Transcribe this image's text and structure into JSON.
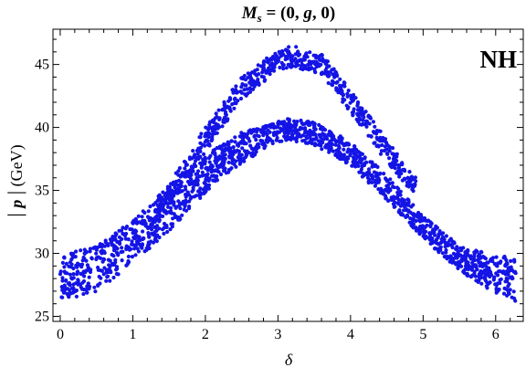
{
  "chart_data": {
    "type": "scatter",
    "title": "Ms = (0, g, 0)",
    "title_parts": {
      "symbol": "M",
      "subscript": "s",
      "rest": " = (0, ",
      "g": "g",
      "end": ", 0)"
    },
    "annotation": "NH",
    "xlabel": "δ",
    "ylabel": "| p | (GeV)",
    "ylabel_parts": {
      "bars_open": "| ",
      "p": "p",
      "bars_close": " |",
      "unit": " (GeV)"
    },
    "xlim": [
      -0.1,
      6.38
    ],
    "ylim": [
      24.6,
      47.8
    ],
    "x_ticks": [
      0,
      1,
      2,
      3,
      4,
      5,
      6
    ],
    "x_tick_labels": [
      "0",
      "1",
      "2",
      "3",
      "4",
      "5",
      "6"
    ],
    "y_ticks": [
      25,
      30,
      35,
      40,
      45
    ],
    "y_tick_labels": [
      "25",
      "30",
      "35",
      "40",
      "45"
    ],
    "grid": false,
    "point_color": "#1414e6",
    "series": [
      {
        "band": "lower",
        "x_range": [
          0,
          6.283
        ],
        "curve": {
          "x": [
            0,
            0.5,
            1.0,
            1.5,
            2.0,
            2.5,
            3.0,
            3.14,
            3.5,
            4.0,
            4.5,
            5.0,
            5.5,
            6.0,
            6.283
          ],
          "y_min": [
            26.2,
            27.0,
            29.2,
            31.8,
            34.8,
            37.2,
            38.8,
            39.0,
            38.6,
            37.0,
            34.2,
            31.2,
            28.6,
            26.8,
            26.2
          ],
          "y_max": [
            29.8,
            30.6,
            32.6,
            35.4,
            37.8,
            39.6,
            40.5,
            40.7,
            40.4,
            38.9,
            36.2,
            33.0,
            30.6,
            29.8,
            29.8
          ]
        }
      },
      {
        "band": "upper",
        "x_range": [
          1.3,
          4.9
        ],
        "curve": {
          "x": [
            1.3,
            1.6,
            2.0,
            2.5,
            3.0,
            3.2,
            3.6,
            4.0,
            4.5,
            4.9
          ],
          "y_min": [
            32.0,
            34.5,
            38.0,
            42.2,
            44.5,
            44.8,
            44.2,
            41.2,
            37.2,
            34.5
          ],
          "y_max": [
            33.5,
            36.5,
            40.0,
            44.0,
            46.2,
            46.5,
            45.9,
            43.0,
            39.0,
            36.0
          ]
        }
      }
    ]
  }
}
